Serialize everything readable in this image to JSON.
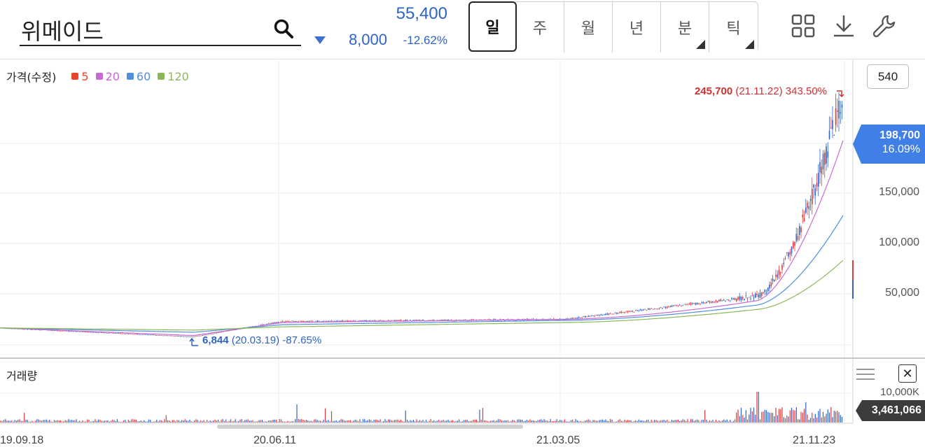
{
  "header": {
    "stock_name": "위메이드",
    "price": "55,400",
    "change": "8,000",
    "change_rate": "-12.62%",
    "direction": "down",
    "period_tabs": [
      {
        "label": "일",
        "active": true,
        "has_submenu": false
      },
      {
        "label": "주",
        "active": false,
        "has_submenu": false
      },
      {
        "label": "월",
        "active": false,
        "has_submenu": false
      },
      {
        "label": "년",
        "active": false,
        "has_submenu": false
      },
      {
        "label": "분",
        "active": false,
        "has_submenu": true
      },
      {
        "label": "틱",
        "active": false,
        "has_submenu": true
      }
    ],
    "tools": [
      "grid-icon",
      "download-icon",
      "wrench-icon"
    ]
  },
  "price_panel": {
    "legend_label": "가격(수정)",
    "legend": [
      {
        "label": "5",
        "color": "#e8452c"
      },
      {
        "label": "20",
        "color": "#c86ad4"
      },
      {
        "label": "60",
        "color": "#4f8fdc"
      },
      {
        "label": "120",
        "color": "#8cb85a"
      }
    ],
    "range_badge": "540",
    "y_ticks": [
      "150,000",
      "100,000",
      "50,000"
    ],
    "current_price": "198,700",
    "current_rate": "16.09%",
    "high": {
      "price": "245,700",
      "date": "(21.11.22)",
      "rate": "343.50%"
    },
    "low": {
      "price": "6,844",
      "date": "(20.03.19)",
      "rate": "-87.65%"
    }
  },
  "volume_panel": {
    "label": "거래량",
    "max_label": "10,000K",
    "current_volume": "3,461,066"
  },
  "x_axis": [
    "19.09.18",
    "20.06.11",
    "21.03.05",
    "21.11.23"
  ],
  "colors": {
    "up": "#e03a3a",
    "down": "#2e63c8",
    "accent_blue": "#3f7fe6",
    "volume_tag": "#3c3c3c"
  },
  "chart_data": {
    "type": "line",
    "series": [
      {
        "name": "5",
        "x": [
          "19.09.18",
          "20.03.19",
          "20.06.11",
          "21.03.05",
          "21.09.01",
          "21.11.22",
          "21.11.23"
        ],
        "values": [
          15000,
          6844,
          21000,
          23000,
          44000,
          230000,
          198700
        ]
      },
      {
        "name": "20",
        "x": [
          "19.09.18",
          "20.03.19",
          "20.06.11",
          "21.03.05",
          "21.09.01",
          "21.11.23"
        ],
        "values": [
          15000,
          8000,
          20000,
          23000,
          40000,
          190000
        ]
      },
      {
        "name": "60",
        "x": [
          "19.09.18",
          "20.03.19",
          "20.06.11",
          "21.03.05",
          "21.09.01",
          "21.11.23"
        ],
        "values": [
          15000,
          11000,
          18000,
          22000,
          36000,
          120000
        ]
      },
      {
        "name": "120",
        "x": [
          "19.09.18",
          "20.03.19",
          "20.06.11",
          "21.03.05",
          "21.09.01",
          "21.11.23"
        ],
        "values": [
          15000,
          13000,
          16000,
          20000,
          32000,
          78000
        ]
      }
    ],
    "ylim": [
      0,
      250000
    ],
    "grid": true
  }
}
